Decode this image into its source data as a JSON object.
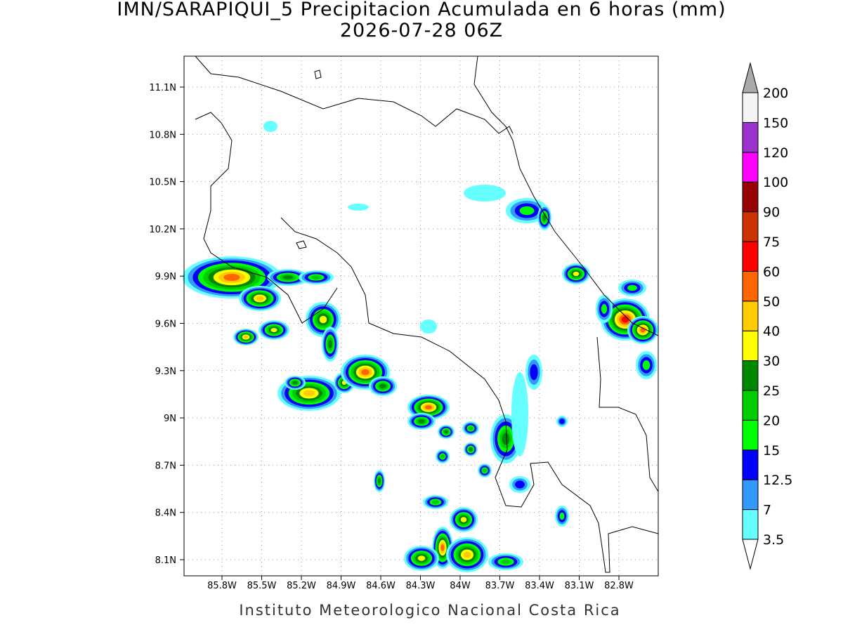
{
  "title": "IMN/SARAPIQUI_5 Precipitacion Acumulada en 6 horas (mm)",
  "subtitle": "2026-07-28 06Z",
  "map": {
    "lon_labels": [
      "85.8W",
      "85.5W",
      "85.2W",
      "84.9W",
      "84.6W",
      "84.3W",
      "84W",
      "83.7W",
      "83.4W",
      "83.1W",
      "82.8W"
    ],
    "lat_labels": [
      "11.1N",
      "10.8N",
      "10.5N",
      "10.2N",
      "9.9N",
      "9.6N",
      "9.3N",
      "9N",
      "8.7N",
      "8.4N",
      "8.1N"
    ]
  },
  "legend": {
    "levels": [
      3.5,
      7,
      12.5,
      15,
      20,
      25,
      30,
      40,
      50,
      60,
      75,
      90,
      100,
      120,
      150,
      200
    ],
    "colors": [
      "#66ffff",
      "#3399ff",
      "#0000ff",
      "#00ff00",
      "#00cc00",
      "#008800",
      "#ffff00",
      "#ffcc00",
      "#ff6600",
      "#ff0000",
      "#cc3300",
      "#990000",
      "#ff00ff",
      "#9933cc",
      "#f5f5f5"
    ],
    "under_color": "#ffffff",
    "over_color": "#aaaaaa"
  },
  "footer": "Instituto Meteorologico Nacional Costa Rica"
}
